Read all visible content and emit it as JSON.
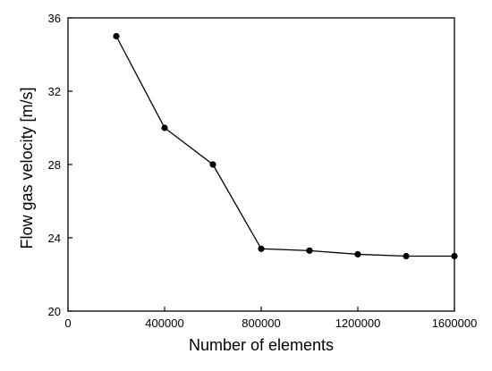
{
  "chart_data": {
    "type": "line",
    "title": "",
    "xlabel": "Number of elements",
    "ylabel": "Flow gas velocity [m/s]",
    "xlim": [
      0,
      1600000
    ],
    "ylim": [
      20,
      36
    ],
    "x_ticks": [
      0,
      400000,
      800000,
      1200000,
      1600000
    ],
    "x_tick_labels": [
      "0",
      "400000",
      "800000",
      "1200000",
      "1600000"
    ],
    "y_ticks": [
      20,
      24,
      28,
      32,
      36
    ],
    "y_tick_labels": [
      "20",
      "24",
      "28",
      "32",
      "36"
    ],
    "grid": false,
    "legend": "none",
    "series": [
      {
        "color": "#000000",
        "marker": "circle",
        "x": [
          200000,
          400000,
          600000,
          800000,
          1000000,
          1200000,
          1400000,
          1600000
        ],
        "y": [
          35.0,
          30.0,
          28.0,
          23.4,
          23.3,
          23.1,
          23.0,
          23.0
        ]
      }
    ]
  }
}
